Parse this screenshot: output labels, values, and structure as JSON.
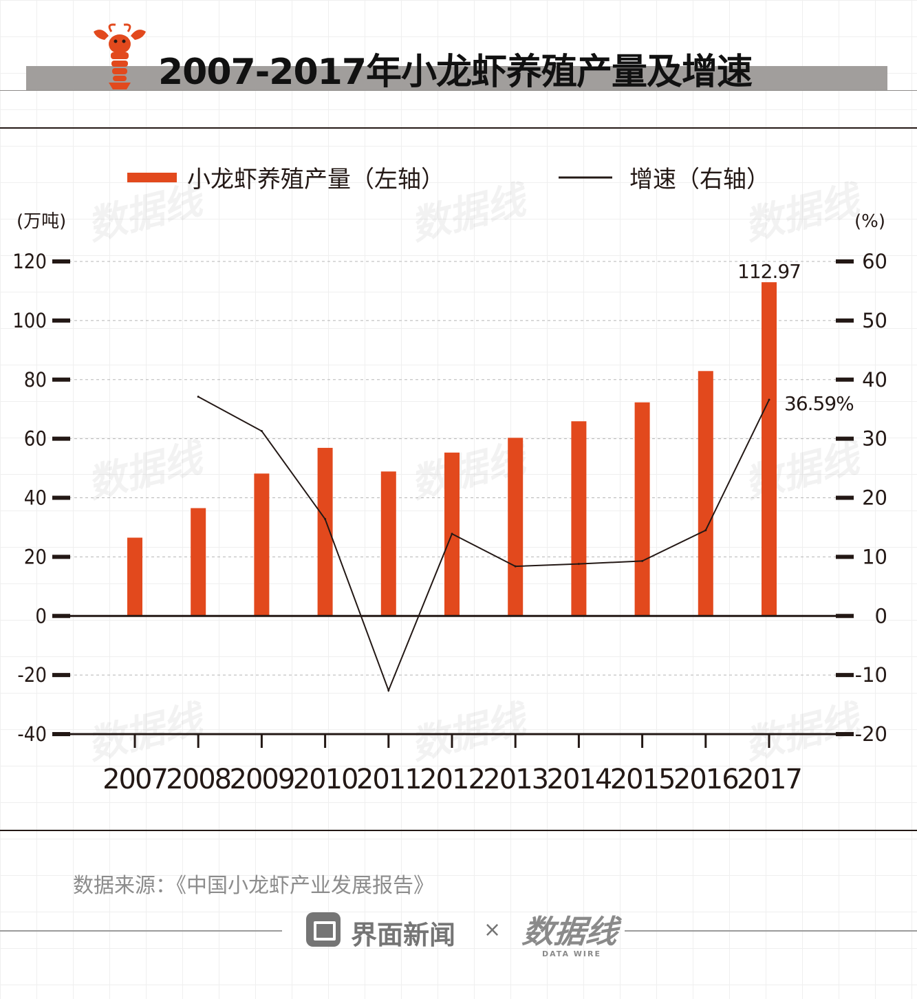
{
  "title": "2007-2017年小龙虾养殖产量及增速",
  "watermark": "数据线",
  "source": "数据来源：《中国小龙虾产业发展报告》",
  "brand": {
    "name": "界面新闻",
    "separator": "×",
    "partner": "数据线",
    "partner_sub": "DATA WIRE"
  },
  "colors": {
    "bar": "#e2491d",
    "line": "#231815",
    "header_band": "#a19e9c"
  },
  "chart_data": {
    "type": "bar",
    "categories": [
      "2007",
      "2008",
      "2009",
      "2010",
      "2011",
      "2012",
      "2013",
      "2014",
      "2015",
      "2016",
      "2017"
    ],
    "series": [
      {
        "name": "小龙虾养殖产量（左轴）",
        "type": "bar",
        "axis": "left",
        "values": [
          26.5,
          36.5,
          48.2,
          56.9,
          48.9,
          55.3,
          60.3,
          65.9,
          72.3,
          82.9,
          112.97
        ]
      },
      {
        "name": "增速（右轴）",
        "type": "line",
        "axis": "right",
        "values": [
          null,
          37.1,
          31.3,
          16.4,
          -12.6,
          13.9,
          8.4,
          8.8,
          9.3,
          14.5,
          36.59
        ]
      }
    ],
    "left_axis": {
      "label": "(万吨)",
      "ticks": [
        120,
        100,
        80,
        60,
        40,
        20,
        0,
        -20,
        -40
      ],
      "range": [
        -40,
        120
      ]
    },
    "right_axis": {
      "label": "(%)",
      "ticks": [
        60,
        50,
        40,
        30,
        20,
        10,
        0,
        -10,
        -20
      ],
      "range": [
        -20,
        60
      ]
    },
    "data_labels": [
      {
        "series": 0,
        "index": 10,
        "text": "112.97"
      },
      {
        "series": 1,
        "index": 10,
        "text": "36.59%"
      }
    ],
    "legend": "top",
    "grid": true
  }
}
